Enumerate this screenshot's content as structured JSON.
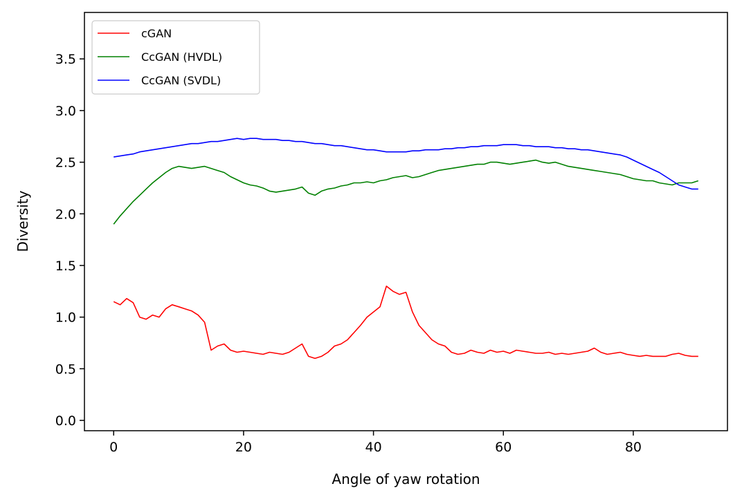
{
  "chart_data": {
    "type": "line",
    "title": "",
    "xlabel": "Angle of yaw rotation",
    "ylabel": "Diversity",
    "xlim": [
      -4.5,
      94.5
    ],
    "ylim": [
      -0.1,
      3.95
    ],
    "xticks": [
      0,
      20,
      40,
      60,
      80
    ],
    "yticks": [
      0.0,
      0.5,
      1.0,
      1.5,
      2.0,
      2.5,
      3.0,
      3.5
    ],
    "xtick_labels": [
      "0",
      "20",
      "40",
      "60",
      "80"
    ],
    "ytick_labels": [
      "0.0",
      "0.5",
      "1.0",
      "1.5",
      "2.0",
      "2.5",
      "3.0",
      "3.5"
    ],
    "grid": false,
    "legend_position": "upper-left",
    "series": [
      {
        "name": "cGAN",
        "color": "#ff0000",
        "x": [
          0,
          1,
          2,
          3,
          4,
          5,
          6,
          7,
          8,
          9,
          10,
          11,
          12,
          13,
          14,
          15,
          16,
          17,
          18,
          19,
          20,
          21,
          22,
          23,
          24,
          25,
          26,
          27,
          28,
          29,
          30,
          31,
          32,
          33,
          34,
          35,
          36,
          37,
          38,
          39,
          40,
          41,
          42,
          43,
          44,
          45,
          46,
          47,
          48,
          49,
          50,
          51,
          52,
          53,
          54,
          55,
          56,
          57,
          58,
          59,
          60,
          61,
          62,
          63,
          64,
          65,
          66,
          67,
          68,
          69,
          70,
          71,
          72,
          73,
          74,
          75,
          76,
          77,
          78,
          79,
          80,
          81,
          82,
          83,
          84,
          85,
          86,
          87,
          88,
          89,
          90
        ],
        "values": [
          1.15,
          1.12,
          1.18,
          1.14,
          1.0,
          0.98,
          1.02,
          1.0,
          1.08,
          1.12,
          1.1,
          1.08,
          1.06,
          1.02,
          0.95,
          0.68,
          0.72,
          0.74,
          0.68,
          0.66,
          0.67,
          0.66,
          0.65,
          0.64,
          0.66,
          0.65,
          0.64,
          0.66,
          0.7,
          0.74,
          0.62,
          0.6,
          0.62,
          0.66,
          0.72,
          0.74,
          0.78,
          0.85,
          0.92,
          1.0,
          1.05,
          1.1,
          1.3,
          1.25,
          1.22,
          1.24,
          1.05,
          0.92,
          0.85,
          0.78,
          0.74,
          0.72,
          0.66,
          0.64,
          0.65,
          0.68,
          0.66,
          0.65,
          0.68,
          0.66,
          0.67,
          0.65,
          0.68,
          0.67,
          0.66,
          0.65,
          0.65,
          0.66,
          0.64,
          0.65,
          0.64,
          0.65,
          0.66,
          0.67,
          0.7,
          0.66,
          0.64,
          0.65,
          0.66,
          0.64,
          0.63,
          0.62,
          0.63,
          0.62,
          0.62,
          0.62,
          0.64,
          0.65,
          0.63,
          0.62,
          0.62
        ]
      },
      {
        "name": "CcGAN (HVDL)",
        "color": "#008000",
        "x": [
          0,
          1,
          2,
          3,
          4,
          5,
          6,
          7,
          8,
          9,
          10,
          11,
          12,
          13,
          14,
          15,
          16,
          17,
          18,
          19,
          20,
          21,
          22,
          23,
          24,
          25,
          26,
          27,
          28,
          29,
          30,
          31,
          32,
          33,
          34,
          35,
          36,
          37,
          38,
          39,
          40,
          41,
          42,
          43,
          44,
          45,
          46,
          47,
          48,
          49,
          50,
          51,
          52,
          53,
          54,
          55,
          56,
          57,
          58,
          59,
          60,
          61,
          62,
          63,
          64,
          65,
          66,
          67,
          68,
          69,
          70,
          71,
          72,
          73,
          74,
          75,
          76,
          77,
          78,
          79,
          80,
          81,
          82,
          83,
          84,
          85,
          86,
          87,
          88,
          89,
          90
        ],
        "values": [
          1.9,
          1.98,
          2.05,
          2.12,
          2.18,
          2.24,
          2.3,
          2.35,
          2.4,
          2.44,
          2.46,
          2.45,
          2.44,
          2.45,
          2.46,
          2.44,
          2.42,
          2.4,
          2.36,
          2.33,
          2.3,
          2.28,
          2.27,
          2.25,
          2.22,
          2.21,
          2.22,
          2.23,
          2.24,
          2.26,
          2.2,
          2.18,
          2.22,
          2.24,
          2.25,
          2.27,
          2.28,
          2.3,
          2.3,
          2.31,
          2.3,
          2.32,
          2.33,
          2.35,
          2.36,
          2.37,
          2.35,
          2.36,
          2.38,
          2.4,
          2.42,
          2.43,
          2.44,
          2.45,
          2.46,
          2.47,
          2.48,
          2.48,
          2.5,
          2.5,
          2.49,
          2.48,
          2.49,
          2.5,
          2.51,
          2.52,
          2.5,
          2.49,
          2.5,
          2.48,
          2.46,
          2.45,
          2.44,
          2.43,
          2.42,
          2.41,
          2.4,
          2.39,
          2.38,
          2.36,
          2.34,
          2.33,
          2.32,
          2.32,
          2.3,
          2.29,
          2.28,
          2.3,
          2.3,
          2.3,
          2.32
        ]
      },
      {
        "name": "CcGAN (SVDL)",
        "color": "#0000ff",
        "x": [
          0,
          1,
          2,
          3,
          4,
          5,
          6,
          7,
          8,
          9,
          10,
          11,
          12,
          13,
          14,
          15,
          16,
          17,
          18,
          19,
          20,
          21,
          22,
          23,
          24,
          25,
          26,
          27,
          28,
          29,
          30,
          31,
          32,
          33,
          34,
          35,
          36,
          37,
          38,
          39,
          40,
          41,
          42,
          43,
          44,
          45,
          46,
          47,
          48,
          49,
          50,
          51,
          52,
          53,
          54,
          55,
          56,
          57,
          58,
          59,
          60,
          61,
          62,
          63,
          64,
          65,
          66,
          67,
          68,
          69,
          70,
          71,
          72,
          73,
          74,
          75,
          76,
          77,
          78,
          79,
          80,
          81,
          82,
          83,
          84,
          85,
          86,
          87,
          88,
          89,
          90
        ],
        "values": [
          2.55,
          2.56,
          2.57,
          2.58,
          2.6,
          2.61,
          2.62,
          2.63,
          2.64,
          2.65,
          2.66,
          2.67,
          2.68,
          2.68,
          2.69,
          2.7,
          2.7,
          2.71,
          2.72,
          2.73,
          2.72,
          2.73,
          2.73,
          2.72,
          2.72,
          2.72,
          2.71,
          2.71,
          2.7,
          2.7,
          2.69,
          2.68,
          2.68,
          2.67,
          2.66,
          2.66,
          2.65,
          2.64,
          2.63,
          2.62,
          2.62,
          2.61,
          2.6,
          2.6,
          2.6,
          2.6,
          2.61,
          2.61,
          2.62,
          2.62,
          2.62,
          2.63,
          2.63,
          2.64,
          2.64,
          2.65,
          2.65,
          2.66,
          2.66,
          2.66,
          2.67,
          2.67,
          2.67,
          2.66,
          2.66,
          2.65,
          2.65,
          2.65,
          2.64,
          2.64,
          2.63,
          2.63,
          2.62,
          2.62,
          2.61,
          2.6,
          2.59,
          2.58,
          2.57,
          2.55,
          2.52,
          2.49,
          2.46,
          2.43,
          2.4,
          2.36,
          2.32,
          2.28,
          2.26,
          2.24,
          2.24
        ]
      }
    ]
  }
}
